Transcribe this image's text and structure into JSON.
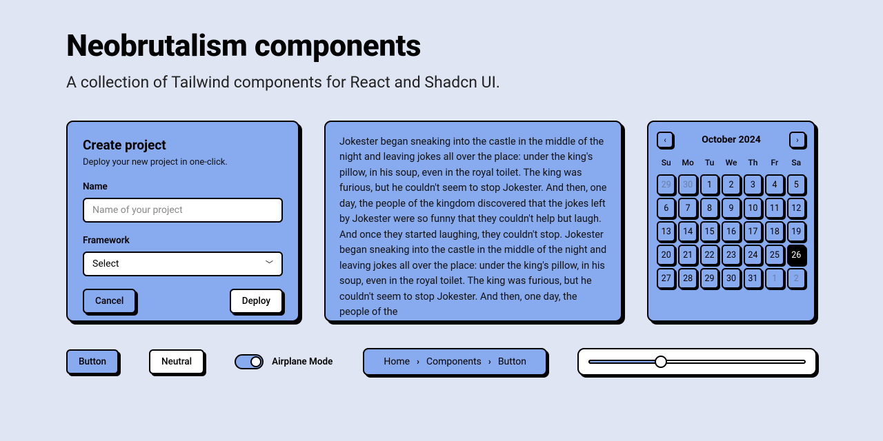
{
  "colors": {
    "page_bg": "#dfe5f2",
    "primary": "#88aaee",
    "border": "#000000",
    "text": "#000000",
    "neutral_bg": "#ffffff",
    "muted_day": "#6a7fa8"
  },
  "header": {
    "title": "Neobrutalism components",
    "subtitle": "A collection of Tailwind components for React and Shadcn UI."
  },
  "card": {
    "title": "Create project",
    "description": "Deploy your new project in one-click.",
    "name_label": "Name",
    "name_placeholder": "Name of your project",
    "framework_label": "Framework",
    "framework_value": "Select",
    "cancel_label": "Cancel",
    "deploy_label": "Deploy"
  },
  "story": {
    "text": "Jokester began sneaking into the castle in the middle of the night and leaving jokes all over the place: under the king's pillow, in his soup, even in the royal toilet. The king was furious, but he couldn't seem to stop Jokester. And then, one day, the people of the kingdom discovered that the jokes left by Jokester were so funny that they couldn't help but laugh. And once they started laughing, they couldn't stop. Jokester began sneaking into the castle in the middle of the night and leaving jokes all over the place: under the king's pillow, in his soup, even in the royal toilet. The king was furious, but he couldn't seem to stop Jokester. And then, one day, the people of the"
  },
  "calendar": {
    "month_label": "October 2024",
    "dow": [
      "Su",
      "Mo",
      "Tu",
      "We",
      "Th",
      "Fr",
      "Sa"
    ],
    "days": [
      {
        "n": 29,
        "state": "outside"
      },
      {
        "n": 30,
        "state": "outside"
      },
      {
        "n": 1
      },
      {
        "n": 2
      },
      {
        "n": 3
      },
      {
        "n": 4
      },
      {
        "n": 5
      },
      {
        "n": 6
      },
      {
        "n": 7
      },
      {
        "n": 8
      },
      {
        "n": 9
      },
      {
        "n": 10
      },
      {
        "n": 11
      },
      {
        "n": 12
      },
      {
        "n": 13
      },
      {
        "n": 14
      },
      {
        "n": 15
      },
      {
        "n": 16
      },
      {
        "n": 17
      },
      {
        "n": 18
      },
      {
        "n": 19
      },
      {
        "n": 20
      },
      {
        "n": 21
      },
      {
        "n": 22
      },
      {
        "n": 23
      },
      {
        "n": 24
      },
      {
        "n": 25
      },
      {
        "n": 26,
        "state": "today"
      },
      {
        "n": 27
      },
      {
        "n": 28
      },
      {
        "n": 29
      },
      {
        "n": 30
      },
      {
        "n": 31
      },
      {
        "n": 1,
        "state": "outside"
      },
      {
        "n": 2,
        "state": "outside"
      }
    ]
  },
  "row2": {
    "button_primary": "Button",
    "button_neutral": "Neutral",
    "toggle_label": "Airplane Mode",
    "toggle_on": true,
    "breadcrumb": [
      "Home",
      "Components",
      "Button"
    ],
    "slider_percent": 33
  }
}
